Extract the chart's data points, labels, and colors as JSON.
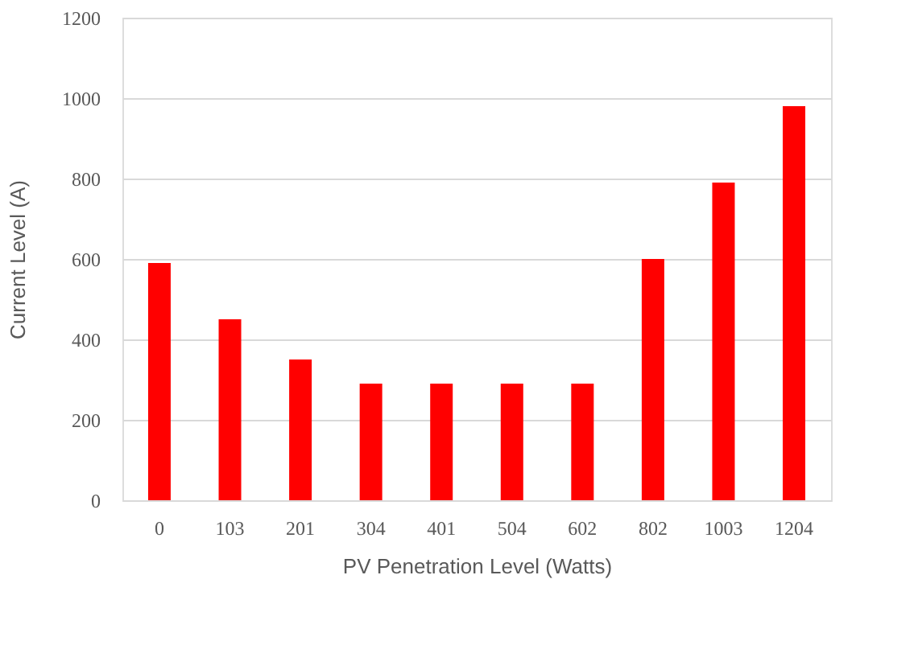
{
  "chart_data": {
    "type": "bar",
    "xlabel": "PV Penetration Level (Watts)",
    "ylabel": "Current Level (A)",
    "categories": [
      "0",
      "103",
      "201",
      "304",
      "401",
      "504",
      "602",
      "802",
      "1003",
      "1204"
    ],
    "series": [
      {
        "color": "#ff0000",
        "values": [
          590,
          450,
          350,
          290,
          290,
          290,
          290,
          600,
          790,
          980
        ]
      }
    ],
    "ylim": [
      0,
      1200
    ],
    "yticks": [
      0,
      200,
      400,
      600,
      800,
      1000,
      1200
    ],
    "grid": "y",
    "legend": false
  }
}
